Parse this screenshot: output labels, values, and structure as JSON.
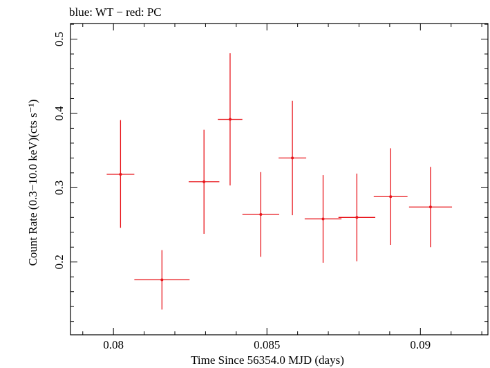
{
  "chart_data": {
    "type": "scatter",
    "title": "blue: WT − red: PC",
    "xlabel": "Time Since 56354.0 MJD (days)",
    "ylabel": "Count Rate (0.3−10.0 keV)(cts s⁻¹)",
    "xlim": [
      0.0786,
      0.0922
    ],
    "ylim": [
      0.102,
      0.521
    ],
    "x_ticks": [
      {
        "value": 0.08,
        "label": "0.08"
      },
      {
        "value": 0.085,
        "label": "0.085"
      },
      {
        "value": 0.09,
        "label": "0.09"
      }
    ],
    "y_ticks": [
      {
        "value": 0.2,
        "label": "0.2"
      },
      {
        "value": 0.3,
        "label": "0.3"
      },
      {
        "value": 0.4,
        "label": "0.4"
      },
      {
        "value": 0.5,
        "label": "0.5"
      }
    ],
    "grid": false,
    "series": [
      {
        "color": "#e8141a",
        "points": [
          {
            "x": 0.08023,
            "xerr": 0.00045,
            "y": 0.318,
            "yerr_low": 0.072,
            "yerr_high": 0.073
          },
          {
            "x": 0.08158,
            "xerr": 0.0009,
            "y": 0.176,
            "yerr_low": 0.04,
            "yerr_high": 0.04
          },
          {
            "x": 0.08295,
            "xerr": 0.0005,
            "y": 0.308,
            "yerr_low": 0.07,
            "yerr_high": 0.07
          },
          {
            "x": 0.0838,
            "xerr": 0.0004,
            "y": 0.392,
            "yerr_low": 0.089,
            "yerr_high": 0.089
          },
          {
            "x": 0.0848,
            "xerr": 0.0006,
            "y": 0.264,
            "yerr_low": 0.057,
            "yerr_high": 0.057
          },
          {
            "x": 0.08583,
            "xerr": 0.00045,
            "y": 0.34,
            "yerr_low": 0.077,
            "yerr_high": 0.077
          },
          {
            "x": 0.08683,
            "xerr": 0.0006,
            "y": 0.258,
            "yerr_low": 0.059,
            "yerr_high": 0.059
          },
          {
            "x": 0.08793,
            "xerr": 0.0006,
            "y": 0.26,
            "yerr_low": 0.059,
            "yerr_high": 0.059
          },
          {
            "x": 0.08903,
            "xerr": 0.00055,
            "y": 0.288,
            "yerr_low": 0.065,
            "yerr_high": 0.065
          },
          {
            "x": 0.09033,
            "xerr": 0.0007,
            "y": 0.274,
            "yerr_low": 0.054,
            "yerr_high": 0.054
          }
        ]
      }
    ]
  }
}
